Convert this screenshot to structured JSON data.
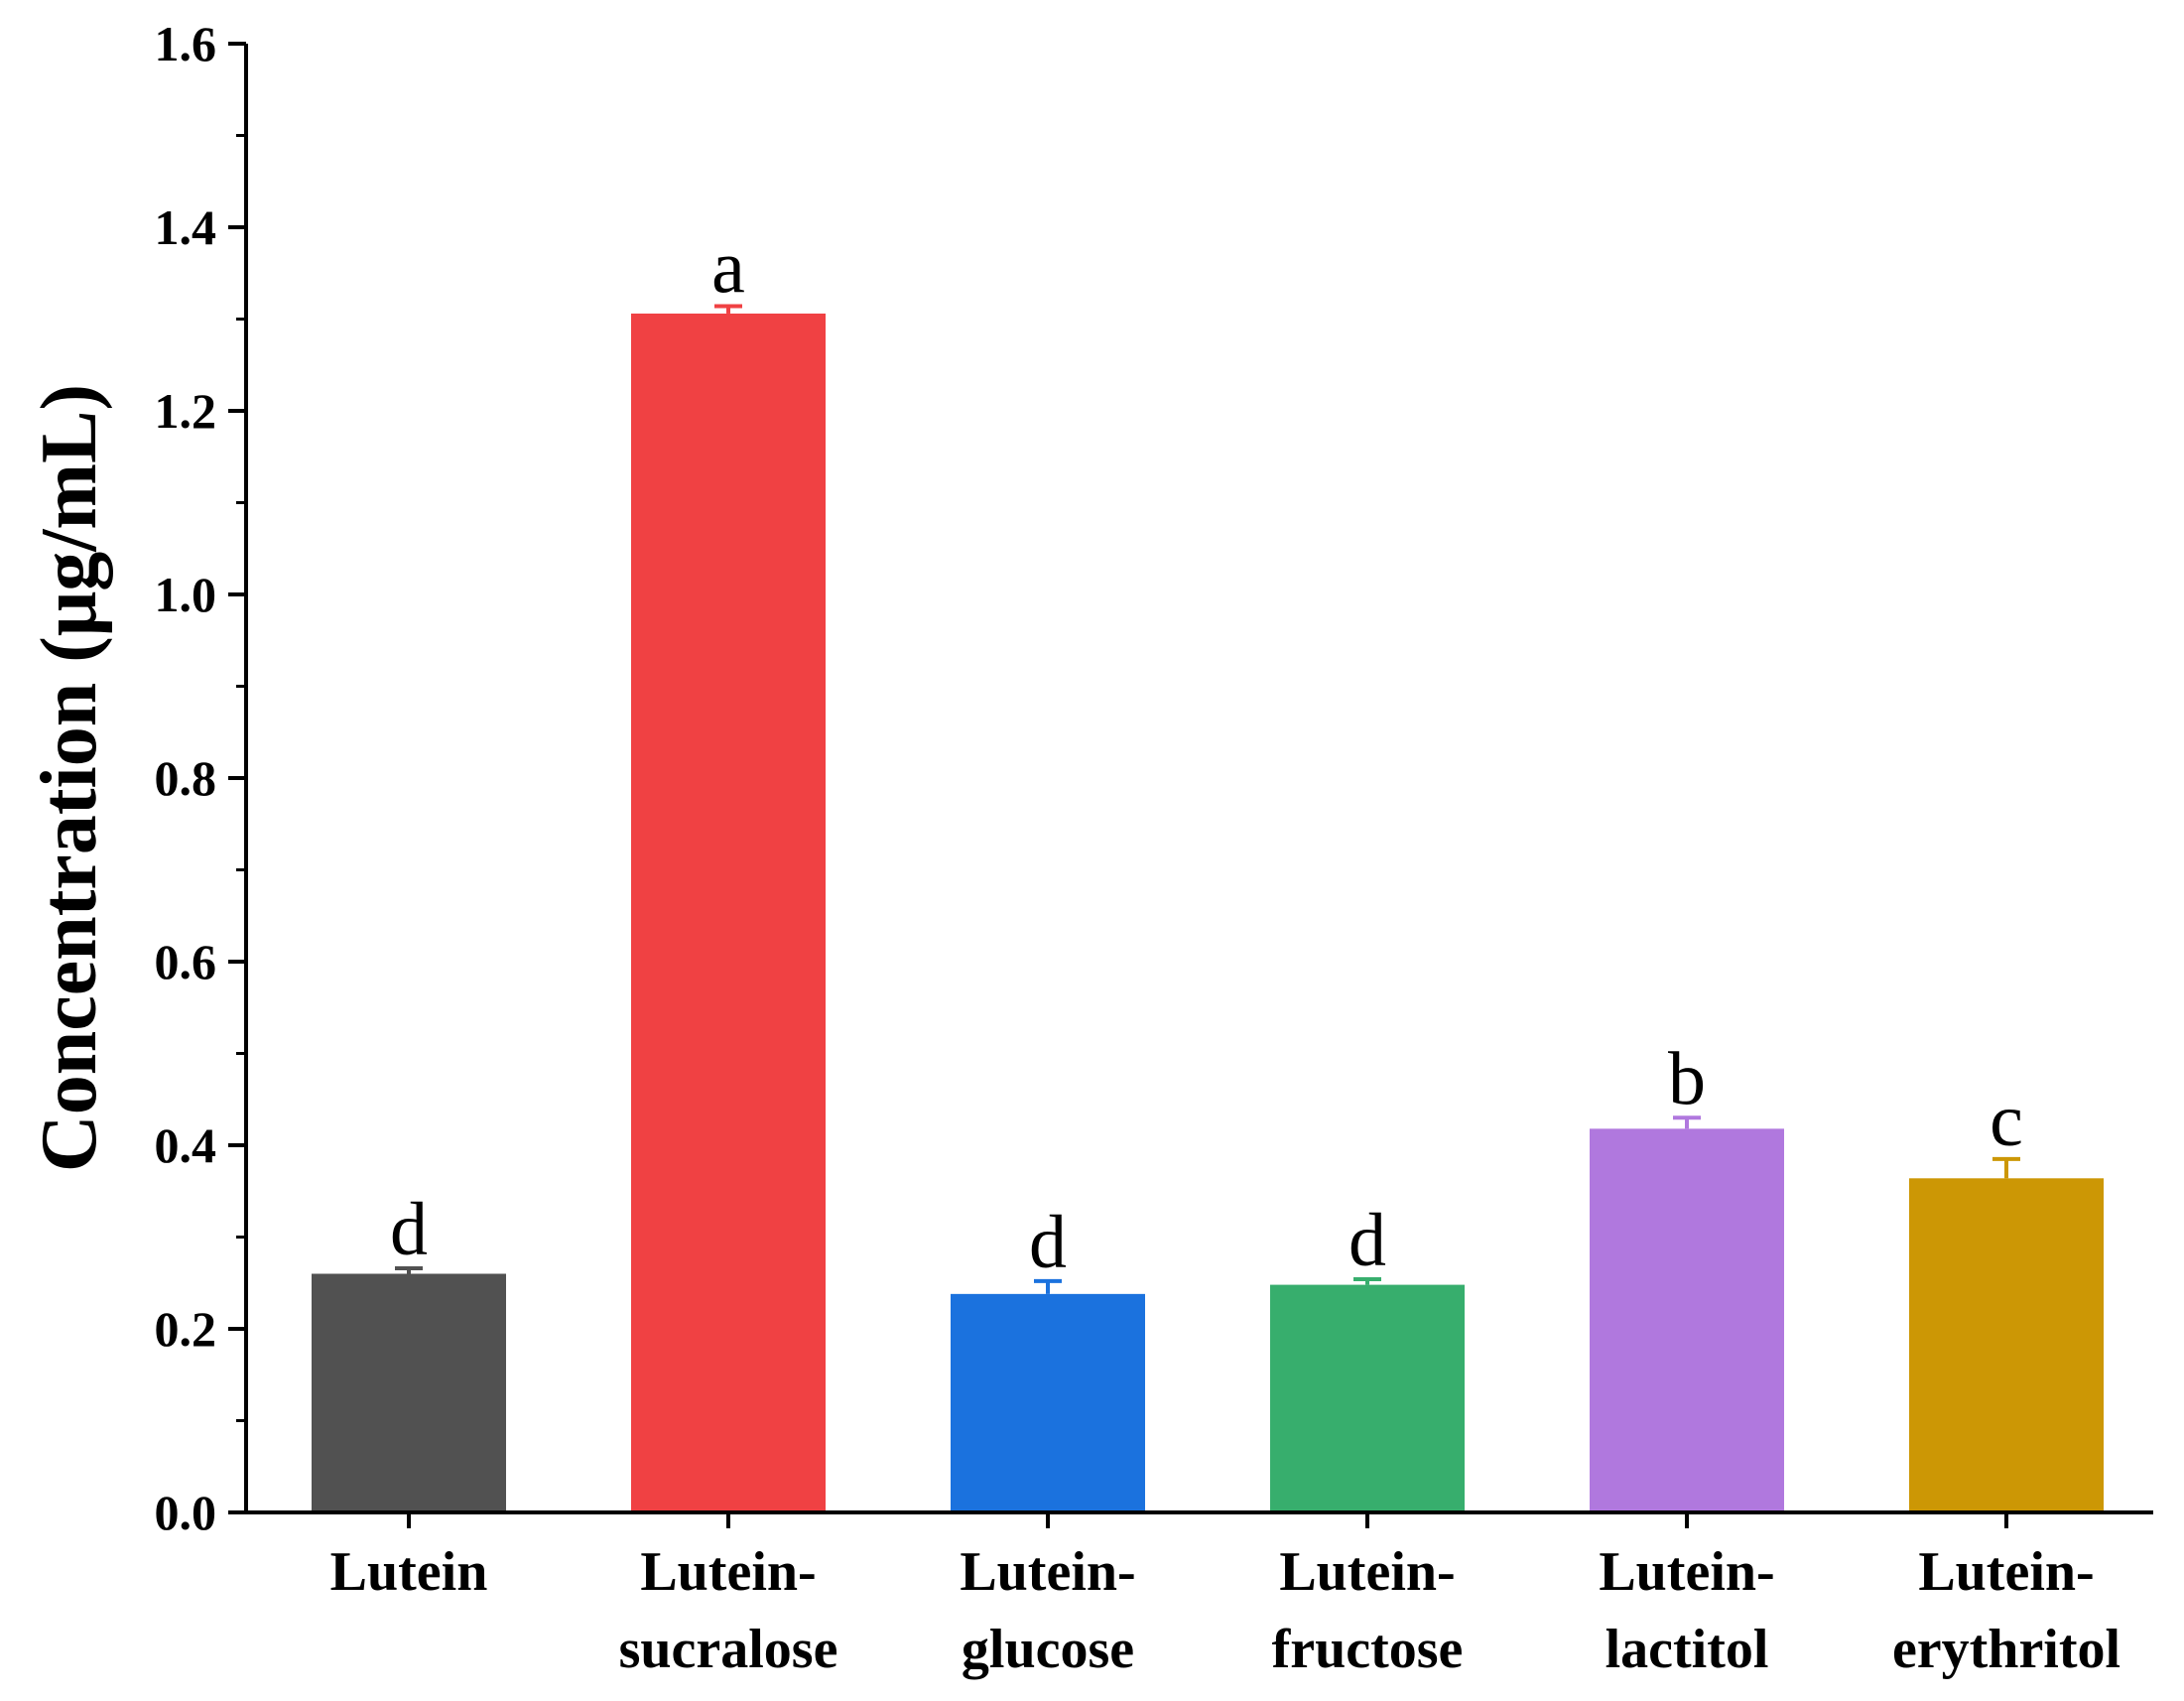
{
  "chart_data": {
    "type": "bar",
    "title": "",
    "xlabel": "",
    "ylabel": "Concentration (μg/mL)",
    "ylim": [
      0,
      1.6
    ],
    "yticks": [
      "0.0",
      "0.2",
      "0.4",
      "0.6",
      "0.8",
      "1.0",
      "1.2",
      "1.4",
      "1.6"
    ],
    "grid": false,
    "legend": "none",
    "categories": [
      [
        "Lutein"
      ],
      [
        "Lutein-",
        "sucralose"
      ],
      [
        "Lutein-",
        "glucose"
      ],
      [
        "Lutein-",
        "fructose"
      ],
      [
        "Lutein-",
        "lactitol"
      ],
      [
        "Lutein-",
        "erythritol"
      ]
    ],
    "values": [
      0.26,
      1.306,
      0.238,
      0.248,
      0.418,
      0.364
    ],
    "errors": [
      0.006,
      0.008,
      0.014,
      0.006,
      0.012,
      0.021
    ],
    "significance": [
      "d",
      "a",
      "d",
      "d",
      "b",
      "c"
    ],
    "colors": [
      "#515151",
      "#f04143",
      "#1b72de",
      "#37ae6d",
      "#b078de",
      "#cc9705"
    ]
  }
}
